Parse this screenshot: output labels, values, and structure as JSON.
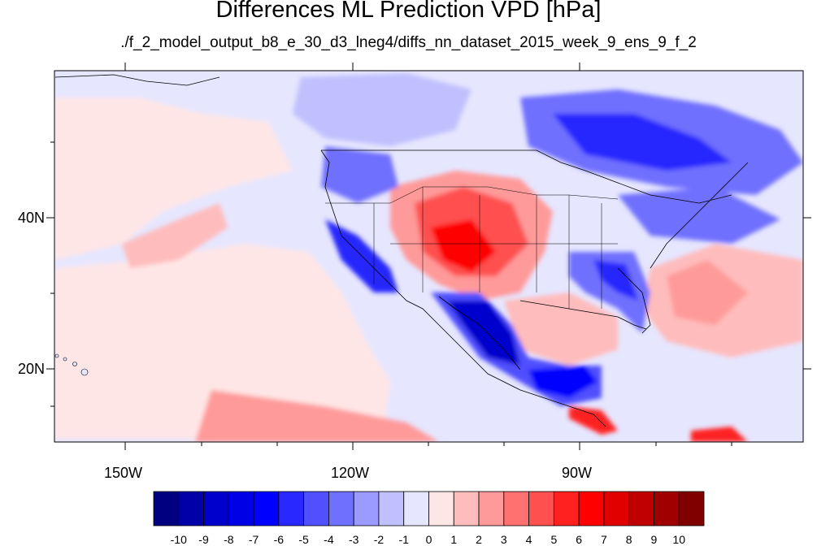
{
  "title": "Differences ML Prediction VPD [hPa]",
  "subtitle": "./f_2_model_output_b8_e_30_d3_lneg4/diffs_nn_dataset_2015_week_9_ens_9_f_2",
  "axes": {
    "lat_labels": [
      "40N",
      "20N"
    ],
    "lon_labels": [
      "150W",
      "120W",
      "90W"
    ]
  },
  "colorbar": {
    "labels": [
      "-10",
      "-9",
      "-8",
      "-7",
      "-6",
      "-5",
      "-4",
      "-3",
      "-2",
      "-1",
      "0",
      "1",
      "2",
      "3",
      "4",
      "5",
      "6",
      "7",
      "8",
      "9",
      "10"
    ],
    "colors": [
      "#000080",
      "#0000a8",
      "#0000cc",
      "#0000e6",
      "#0000ff",
      "#2828ff",
      "#5050ff",
      "#7070ff",
      "#9a9aff",
      "#c0c0ff",
      "#e6e6ff",
      "#ffe6e6",
      "#ffbcbc",
      "#ff9a9a",
      "#ff7070",
      "#ff5050",
      "#ff2020",
      "#ff0000",
      "#e00000",
      "#c00000",
      "#a00000",
      "#800000"
    ]
  },
  "colors": {
    "frame": "#000000",
    "background": "#ffffff"
  }
}
